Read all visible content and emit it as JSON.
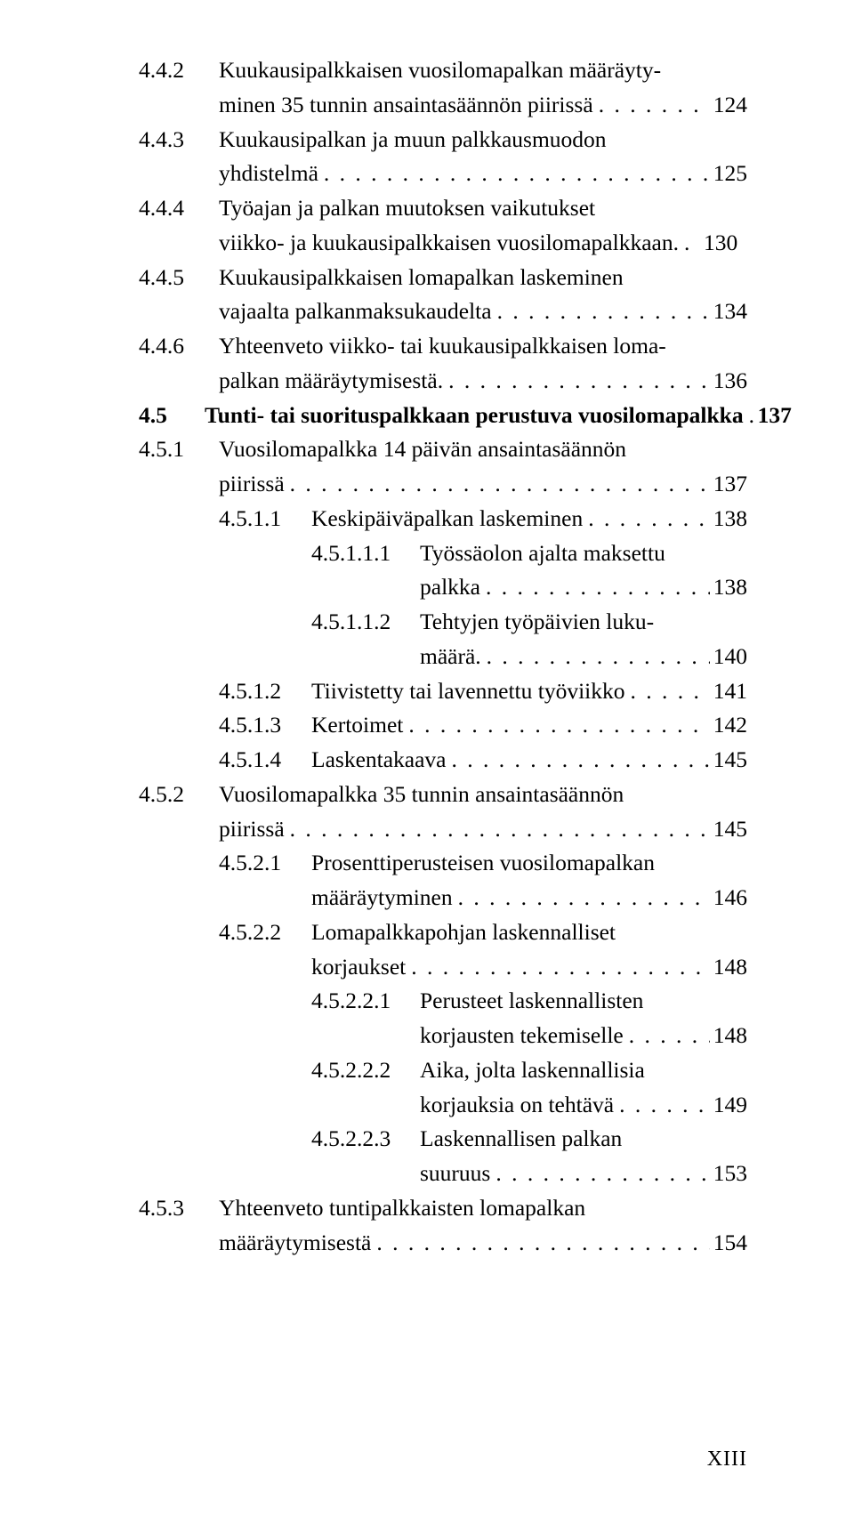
{
  "entries": [
    {
      "level": 1,
      "num": "4.4.2",
      "title_lines": [
        "Kuukausipalkkaisen vuosilomapalkan määräyty-",
        "minen 35 tunnin ansaintasäännön piirissä"
      ],
      "page": "124"
    },
    {
      "level": 1,
      "num": "4.4.3",
      "title_lines": [
        "Kuukausipalkan ja muun palkkausmuodon",
        "yhdistelmä"
      ],
      "page": "125"
    },
    {
      "level": 1,
      "num": "4.4.4",
      "title_lines": [
        "Työajan ja palkan muutoksen vaikutukset",
        "viikko- ja kuukausipalkkaisen vuosilomapalkkaan."
      ],
      "page": "130",
      "tight": true
    },
    {
      "level": 1,
      "num": "4.4.5",
      "title_lines": [
        "Kuukausipalkkaisen lomapalkan laskeminen",
        "vajaalta palkanmaksukaudelta"
      ],
      "page": "134"
    },
    {
      "level": 1,
      "num": "4.4.6",
      "title_lines": [
        "Yhteenveto viikko- tai kuukausipalkkaisen loma-",
        "palkan määräytymisestä."
      ],
      "page": "136"
    },
    {
      "level": 0,
      "num": "4.5",
      "bold": true,
      "title_lines": [
        "Tunti- tai suorituspalkkaan perustuva vuosilomapalkka"
      ],
      "page": "137"
    },
    {
      "level": 1,
      "num": "4.5.1",
      "title_lines": [
        "Vuosilomapalkka 14 päivän ansaintasäännön",
        "piirissä"
      ],
      "page": "137"
    },
    {
      "level": 2,
      "num": "4.5.1.1",
      "title_lines": [
        "Keskipäiväpalkan laskeminen"
      ],
      "page": "138"
    },
    {
      "level": 3,
      "num": "4.5.1.1.1",
      "title_lines": [
        "Työssäolon ajalta maksettu",
        "palkka"
      ],
      "page": "138"
    },
    {
      "level": 3,
      "num": "4.5.1.1.2",
      "title_lines": [
        "Tehtyjen työpäivien luku-",
        "määrä."
      ],
      "page": "140"
    },
    {
      "level": 2,
      "num": "4.5.1.2",
      "title_lines": [
        "Tiivistetty tai lavennettu työviikko"
      ],
      "page": "141"
    },
    {
      "level": 2,
      "num": "4.5.1.3",
      "title_lines": [
        "Kertoimet"
      ],
      "page": "142"
    },
    {
      "level": 2,
      "num": "4.5.1.4",
      "title_lines": [
        "Laskentakaava"
      ],
      "page": "145"
    },
    {
      "level": 1,
      "num": "4.5.2",
      "title_lines": [
        "Vuosilomapalkka 35 tunnin ansaintasäännön",
        "piirissä"
      ],
      "page": "145"
    },
    {
      "level": 2,
      "num": "4.5.2.1",
      "title_lines": [
        "Prosenttiperusteisen vuosilomapalkan",
        "määräytyminen"
      ],
      "page": "146"
    },
    {
      "level": 2,
      "num": "4.5.2.2",
      "title_lines": [
        "Lomapalkkapohjan laskennalliset",
        "korjaukset"
      ],
      "page": "148"
    },
    {
      "level": 3,
      "num": "4.5.2.2.1",
      "title_lines": [
        "Perusteet laskennallisten",
        "korjausten tekemiselle"
      ],
      "page": "148"
    },
    {
      "level": 3,
      "num": "4.5.2.2.2",
      "title_lines": [
        "Aika, jolta laskennallisia",
        "korjauksia on tehtävä"
      ],
      "page": "149"
    },
    {
      "level": 3,
      "num": "4.5.2.2.3",
      "title_lines": [
        "Laskennallisen palkan",
        "suuruus"
      ],
      "page": "153"
    },
    {
      "level": 1,
      "num": "4.5.3",
      "title_lines": [
        "Yhteenveto tuntipalkkaisten lomapalkan",
        "määräytymisestä"
      ],
      "page": "154"
    }
  ],
  "footer": "XIII"
}
